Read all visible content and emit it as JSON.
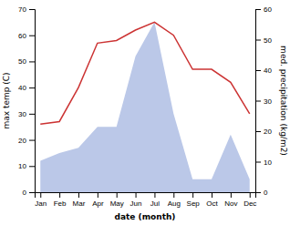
{
  "chart_data": {
    "type": "line",
    "categories": [
      "Jan",
      "Feb",
      "Mar",
      "Apr",
      "May",
      "Jun",
      "Jul",
      "Aug",
      "Sep",
      "Oct",
      "Nov",
      "Dec"
    ],
    "series": [
      {
        "type": "area",
        "color": "#bbc8e8",
        "values": [
          12,
          15,
          17,
          25,
          25,
          52,
          65,
          30,
          5,
          5,
          22,
          5
        ]
      },
      {
        "type": "line",
        "color": "#cc3333",
        "values": [
          26,
          27,
          40,
          57,
          58,
          62,
          65,
          60,
          47,
          47,
          42,
          30
        ]
      }
    ],
    "xlabel": "date (month)",
    "ylabel": "max temp (C)",
    "y2label": "med. precipitation (kg/m2)",
    "ylim": [
      0,
      70
    ],
    "yticks": [
      0,
      10,
      20,
      30,
      40,
      50,
      60,
      70
    ],
    "y2lim": [
      0,
      60
    ],
    "y2ticks": [
      0,
      10,
      20,
      30,
      40,
      50,
      60
    ],
    "grid": false
  }
}
